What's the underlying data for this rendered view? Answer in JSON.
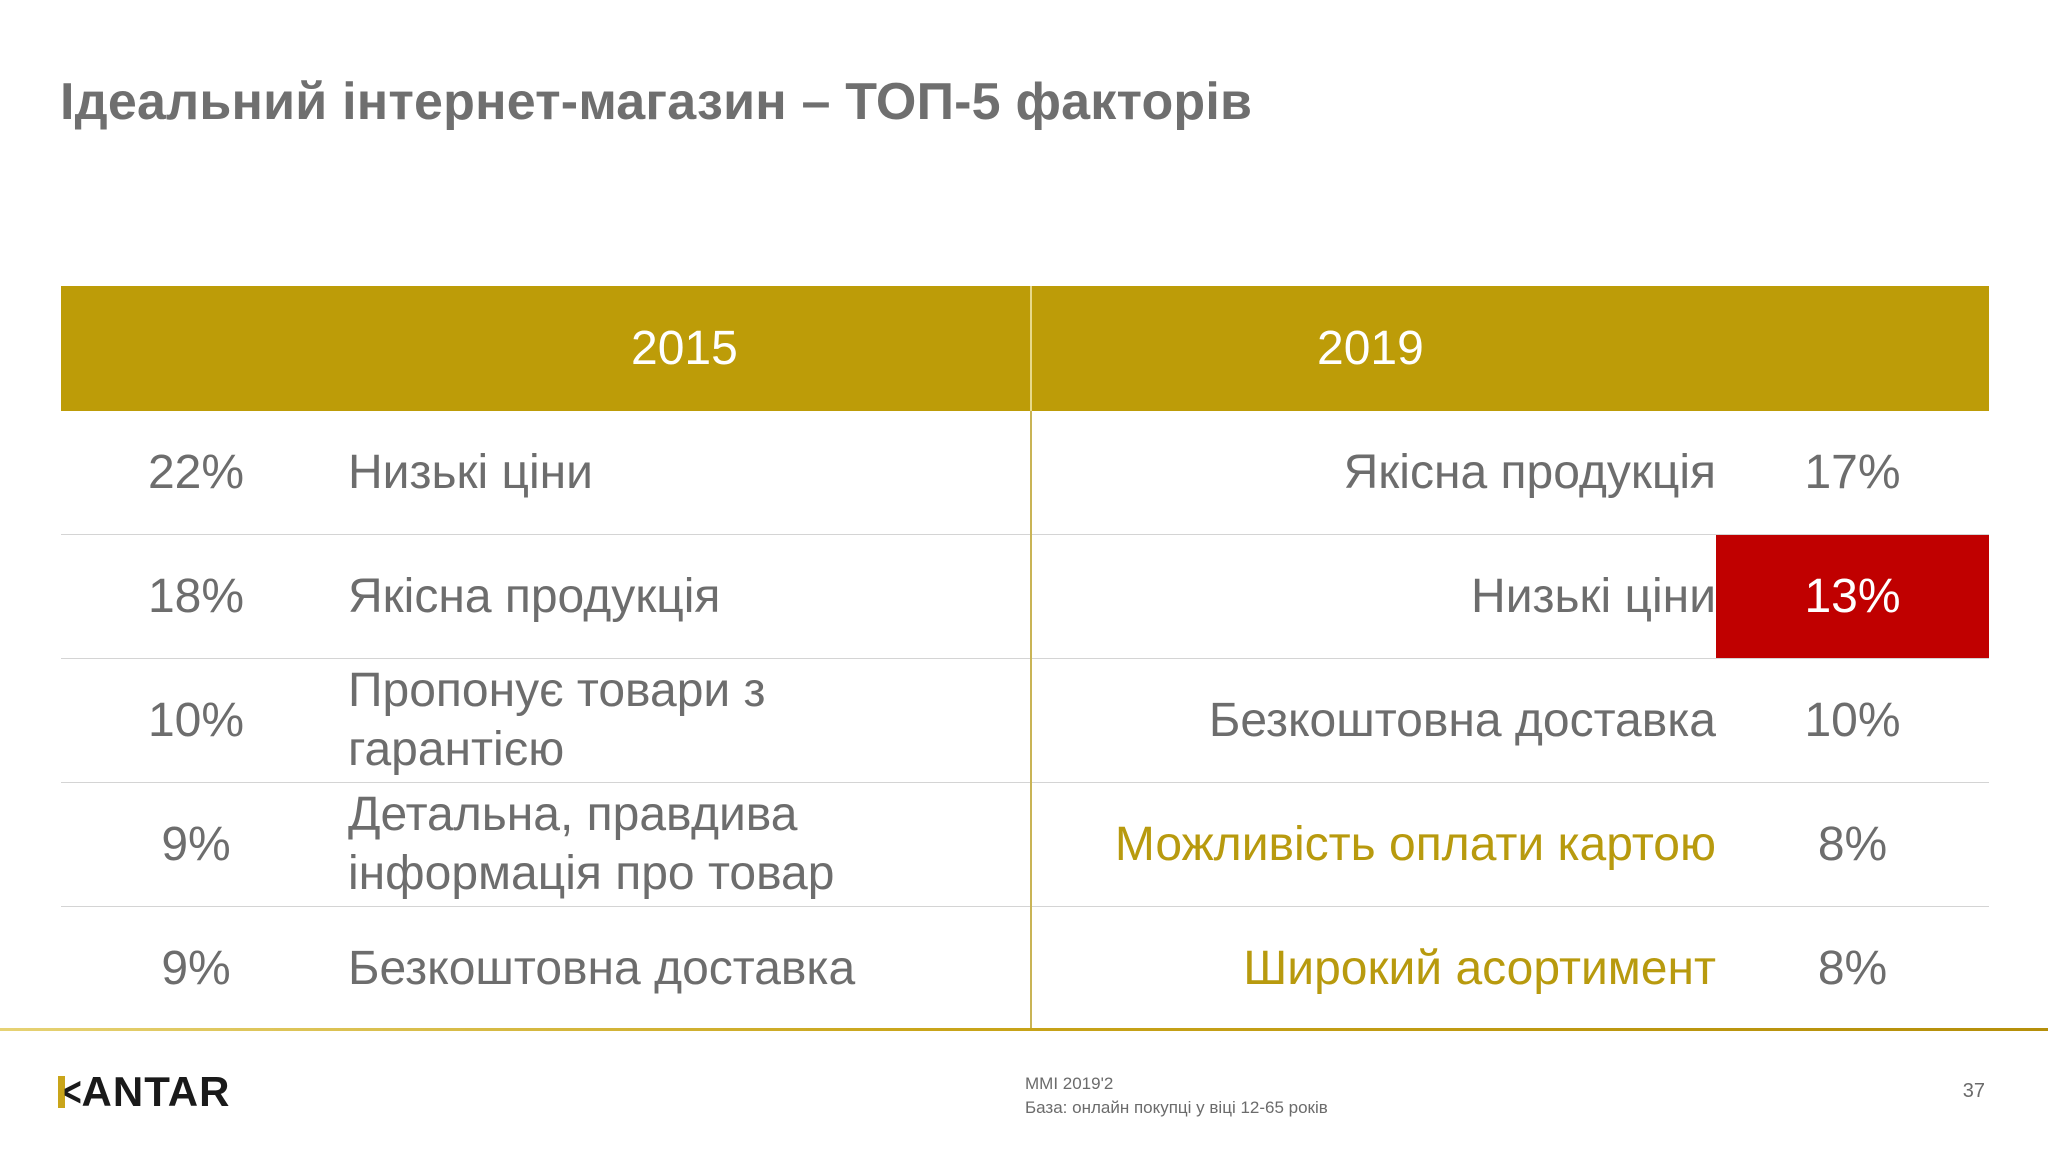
{
  "title": "Ідеальний інтернет-магазин – ТОП-5 факторів",
  "columns": {
    "left": "2015",
    "right": "2019"
  },
  "rows_2015": [
    {
      "pct": "22%",
      "label": "Низькі ціни"
    },
    {
      "pct": "18%",
      "label": "Якісна продукція"
    },
    {
      "pct": "10%",
      "label": "Пропонує товари з гарантією"
    },
    {
      "pct": "9%",
      "label": "Детальна, правдива інформація про товар"
    },
    {
      "pct": "9%",
      "label": "Безкоштовна доставка"
    }
  ],
  "rows_2019": [
    {
      "pct": "17%",
      "label": "Якісна продукція"
    },
    {
      "pct": "13%",
      "label": "Низькі ціни"
    },
    {
      "pct": "10%",
      "label": "Безкоштовна доставка"
    },
    {
      "pct": "8%",
      "label": "Можливість оплати картою"
    },
    {
      "pct": "8%",
      "label": "Широкий асортимент"
    }
  ],
  "colors": {
    "header_gold": "#bd9c08",
    "highlight_gold_text": "#b89a0e",
    "highlight_red": "#c00000"
  },
  "footer": {
    "logo": "KANTAR",
    "source": "MMI 2019'2",
    "base": "База: онлайн покупці у віці 12-65 років",
    "page": "37"
  }
}
